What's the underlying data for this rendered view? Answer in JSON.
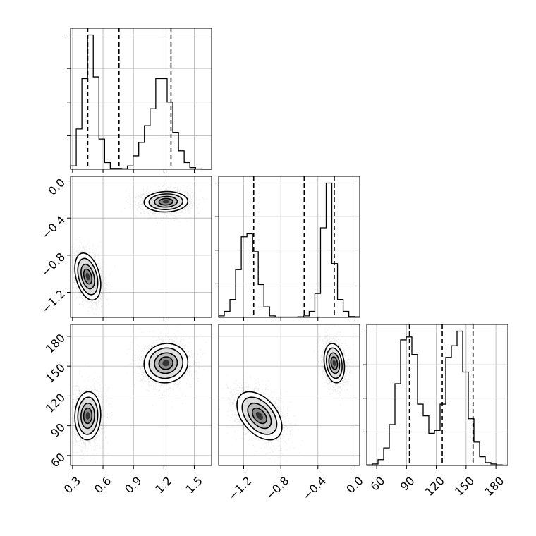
{
  "chart_data": {
    "type": "corner",
    "grid": true,
    "parameters": [
      {
        "key": "p1",
        "range": [
          0.28,
          1.67
        ],
        "ticks": [
          0.3,
          0.6,
          0.9,
          1.2,
          1.5
        ],
        "tick_labels": [
          "0.3",
          "0.6",
          "0.9",
          "1.2",
          "1.5"
        ],
        "hist_edges": [
          0.28,
          0.336,
          0.392,
          0.448,
          0.504,
          0.56,
          0.616,
          0.672,
          0.728,
          0.784,
          0.84,
          0.896,
          0.952,
          1.008,
          1.064,
          1.12,
          1.176,
          1.232,
          1.288,
          1.344,
          1.4,
          1.456,
          1.512,
          1.568,
          1.624,
          1.67
        ],
        "hist_counts": [
          2,
          24,
          54,
          80,
          55,
          18,
          4,
          0.5,
          0.5,
          0.3,
          2,
          8,
          16,
          26,
          36,
          54,
          54,
          40,
          22,
          11,
          4,
          1,
          0.2,
          0,
          0
        ],
        "quantiles": [
          0.45,
          0.758,
          1.27
        ]
      },
      {
        "key": "p2",
        "range": [
          -1.47,
          0.05
        ],
        "ticks": [
          -1.2,
          -0.8,
          -0.4,
          0.0
        ],
        "tick_labels": [
          "−1.2",
          "−0.8",
          "−0.4",
          "0.0"
        ],
        "hist_edges": [
          -1.47,
          -1.409,
          -1.348,
          -1.287,
          -1.226,
          -1.165,
          -1.104,
          -1.043,
          -0.982,
          -0.921,
          -0.86,
          -0.799,
          -0.738,
          -0.677,
          -0.616,
          -0.555,
          -0.494,
          -0.433,
          -0.372,
          -0.311,
          -0.25,
          -0.189,
          -0.128,
          -0.067,
          -0.006,
          0.05
        ],
        "hist_counts": [
          0.5,
          2,
          6,
          16,
          27,
          28,
          22,
          11,
          3.5,
          0.5,
          0.1,
          0.1,
          0.1,
          0.1,
          0.2,
          0.5,
          2,
          8,
          30,
          45,
          18,
          6,
          2,
          0.3,
          0.2
        ],
        "quantiles": [
          -1.092,
          -0.548,
          -0.224
        ]
      },
      {
        "key": "p3",
        "range": [
          50,
          192
        ],
        "ticks": [
          60,
          90,
          120,
          150,
          180
        ],
        "tick_labels": [
          "60",
          "90",
          "120",
          "150",
          "180"
        ],
        "hist_edges": [
          50,
          55.68,
          61.36,
          67.04,
          72.72,
          78.4,
          84.08,
          89.76,
          95.44,
          101.12,
          106.8,
          112.48,
          118.16,
          123.84,
          129.52,
          135.2,
          140.88,
          146.56,
          152.24,
          157.92,
          163.6,
          169.28,
          174.96,
          180.64,
          186.32,
          192
        ],
        "hist_counts": [
          0.2,
          0.5,
          2,
          6,
          14,
          28,
          43,
          44,
          38,
          21,
          17,
          11,
          12,
          21,
          37,
          41,
          46,
          32,
          16,
          8,
          3,
          1,
          0.5,
          0.2,
          0.1
        ],
        "quantiles": [
          93,
          126,
          157
        ]
      }
    ],
    "blobs_2d": [
      {
        "pair": [
          0,
          1
        ],
        "modes": [
          {
            "cx": 0.45,
            "cy": -1.03,
            "sx": 0.058,
            "sy": 0.115,
            "rho": -0.35,
            "n": 2600
          },
          {
            "cx": 1.22,
            "cy": -0.224,
            "sx": 0.098,
            "sy": 0.05,
            "rho": 0.05,
            "n": 2600
          }
        ]
      },
      {
        "pair": [
          0,
          2
        ],
        "modes": [
          {
            "cx": 0.45,
            "cy": 100,
            "sx": 0.058,
            "sy": 11,
            "rho": 0.05,
            "n": 2600
          },
          {
            "cx": 1.22,
            "cy": 153,
            "sx": 0.098,
            "sy": 9,
            "rho": 0.05,
            "n": 2600
          }
        ]
      },
      {
        "pair": [
          1,
          2
        ],
        "modes": [
          {
            "cx": -1.03,
            "cy": 100,
            "sx": 0.11,
            "sy": 11,
            "rho": -0.45,
            "n": 2600
          },
          {
            "cx": -0.224,
            "cy": 153,
            "sx": 0.05,
            "sy": 9,
            "rho": -0.2,
            "n": 2600
          }
        ]
      }
    ],
    "contour_levels": [
      0.9,
      0.6,
      0.35,
      0.15
    ]
  }
}
